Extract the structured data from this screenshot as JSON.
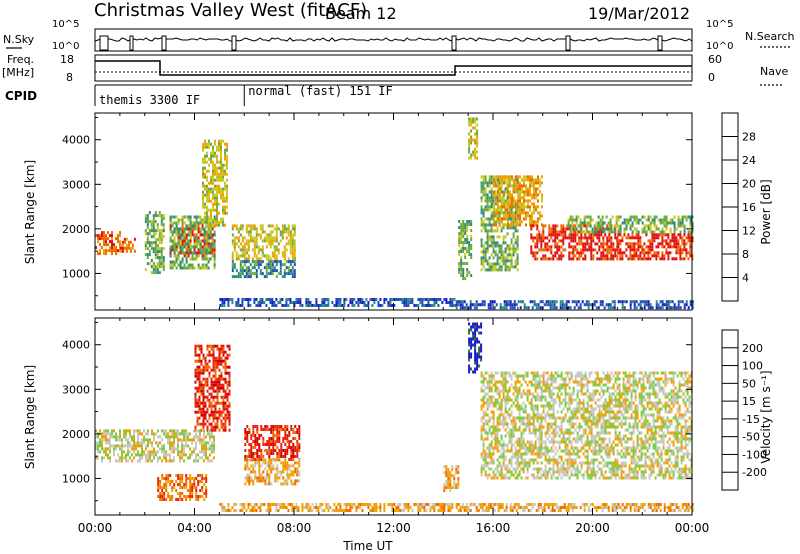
{
  "header": {
    "title": "Christmas Valley West (fitACF)",
    "beam": "Beam 12",
    "date": "19/Mar/2012"
  },
  "status_panel": {
    "nsky_label": "N.Sky",
    "nsky_ticks": [
      "10^5",
      "10^0"
    ],
    "nsearch_label": "N.Search",
    "nsearch_ticks": [
      "10^5",
      "10^0"
    ],
    "freq_label": "Freq.",
    "freq_unit": "[MHz]",
    "freq_ticks": [
      18,
      8
    ],
    "nave_label": "Nave",
    "nave_ticks": [
      60,
      0
    ],
    "cpid_label": "CPID",
    "cpid_modes": [
      {
        "name": "themis 3300 IF",
        "start_h": 0,
        "end_h": 6
      },
      {
        "name": "normal (fast) 151 IF",
        "start_h": 6,
        "end_h": 24
      }
    ]
  },
  "chart_data": [
    {
      "type": "heatmap",
      "name": "power",
      "xlabel": "Time UT",
      "ylabel": "Slant Range [km]",
      "xlim": [
        0,
        24
      ],
      "ylim": [
        180,
        4600
      ],
      "x_ticks": [
        "00:00",
        "04:00",
        "08:00",
        "12:00",
        "16:00",
        "20:00",
        "00:00"
      ],
      "y_ticks": [
        1000,
        2000,
        3000,
        4000
      ],
      "colorbar": {
        "label": "Power [dB]",
        "ticks": [
          4,
          8,
          12,
          16,
          20,
          24,
          28
        ],
        "colors": [
          "#1a1acc",
          "#1e4fb8",
          "#2f8a80",
          "#6aaa40",
          "#c8c820",
          "#f0a000",
          "#f06a00",
          "#e01010"
        ]
      },
      "echo_regions": [
        {
          "t0": 0.0,
          "t1": 1.0,
          "r0": 1450,
          "r1": 1950,
          "level": 6
        },
        {
          "t0": 1.0,
          "t1": 1.6,
          "r0": 1500,
          "r1": 1800,
          "level": 6
        },
        {
          "t0": 2.0,
          "t1": 2.8,
          "r0": 1000,
          "r1": 2400,
          "level": 3
        },
        {
          "t0": 3.0,
          "t1": 4.8,
          "r0": 1400,
          "r1": 2100,
          "level": 7
        },
        {
          "t0": 3.0,
          "t1": 4.8,
          "r0": 1100,
          "r1": 2300,
          "level": 3
        },
        {
          "t0": 4.3,
          "t1": 5.3,
          "r0": 2100,
          "r1": 4000,
          "level": 4
        },
        {
          "t0": 5.5,
          "t1": 8.0,
          "r0": 1300,
          "r1": 2100,
          "level": 4
        },
        {
          "t0": 5.5,
          "t1": 8.0,
          "r0": 900,
          "r1": 1300,
          "level": 2
        },
        {
          "t0": 5.0,
          "t1": 14.5,
          "r0": 250,
          "r1": 450,
          "level": 1
        },
        {
          "t0": 14.6,
          "t1": 15.1,
          "r0": 900,
          "r1": 2200,
          "level": 3
        },
        {
          "t0": 15.0,
          "t1": 15.4,
          "r0": 3600,
          "r1": 4500,
          "level": 4
        },
        {
          "t0": 15.5,
          "t1": 17.0,
          "r0": 1100,
          "r1": 3200,
          "level": 3
        },
        {
          "t0": 16.0,
          "t1": 18.0,
          "r0": 2100,
          "r1": 3200,
          "level": 5
        },
        {
          "t0": 17.5,
          "t1": 21.0,
          "r0": 1300,
          "r1": 2100,
          "level": 7
        },
        {
          "t0": 21.0,
          "t1": 24.0,
          "r0": 1300,
          "r1": 1900,
          "level": 7
        },
        {
          "t0": 19.0,
          "t1": 24.0,
          "r0": 1900,
          "r1": 2300,
          "level": 3
        },
        {
          "t0": 14.5,
          "t1": 24.0,
          "r0": 250,
          "r1": 400,
          "level": 1
        }
      ]
    },
    {
      "type": "heatmap",
      "name": "velocity",
      "xlabel": "Time UT",
      "ylabel": "Slant Range [km]",
      "xlim": [
        0,
        24
      ],
      "ylim": [
        180,
        4600
      ],
      "x_ticks": [
        "00:00",
        "04:00",
        "08:00",
        "12:00",
        "16:00",
        "20:00",
        "00:00"
      ],
      "y_ticks": [
        1000,
        2000,
        3000,
        4000
      ],
      "colorbar": {
        "label": "Velocity [m s⁻¹]",
        "ticks": [
          200,
          100,
          50,
          15,
          -15,
          -50,
          -100,
          -200
        ],
        "colors": [
          "#1a1acc",
          "#2e6e40",
          "#36a030",
          "#7acc40",
          "#c8c8c0",
          "#f0a000",
          "#f06a00",
          "#e82010",
          "#d00000"
        ]
      },
      "echo_regions": [
        {
          "t0": 0.0,
          "t1": 4.8,
          "r0": 1400,
          "r1": 2100,
          "level": 4
        },
        {
          "t0": 4.0,
          "t1": 5.4,
          "r0": 2100,
          "r1": 4000,
          "level": 7
        },
        {
          "t0": 6.0,
          "t1": 8.2,
          "r0": 1450,
          "r1": 2200,
          "level": 7
        },
        {
          "t0": 6.0,
          "t1": 8.2,
          "r0": 900,
          "r1": 1450,
          "level": 5
        },
        {
          "t0": 2.5,
          "t1": 4.5,
          "r0": 500,
          "r1": 1100,
          "level": 6
        },
        {
          "t0": 5.0,
          "t1": 14.5,
          "r0": 250,
          "r1": 450,
          "level": 5
        },
        {
          "t0": 14.0,
          "t1": 14.6,
          "r0": 700,
          "r1": 1300,
          "level": 5
        },
        {
          "t0": 15.0,
          "t1": 15.5,
          "r0": 3400,
          "r1": 4500,
          "level": 0
        },
        {
          "t0": 15.5,
          "t1": 24.0,
          "r0": 1000,
          "r1": 3400,
          "level": 4
        },
        {
          "t0": 14.5,
          "t1": 24.0,
          "r0": 250,
          "r1": 450,
          "level": 5
        }
      ]
    }
  ]
}
